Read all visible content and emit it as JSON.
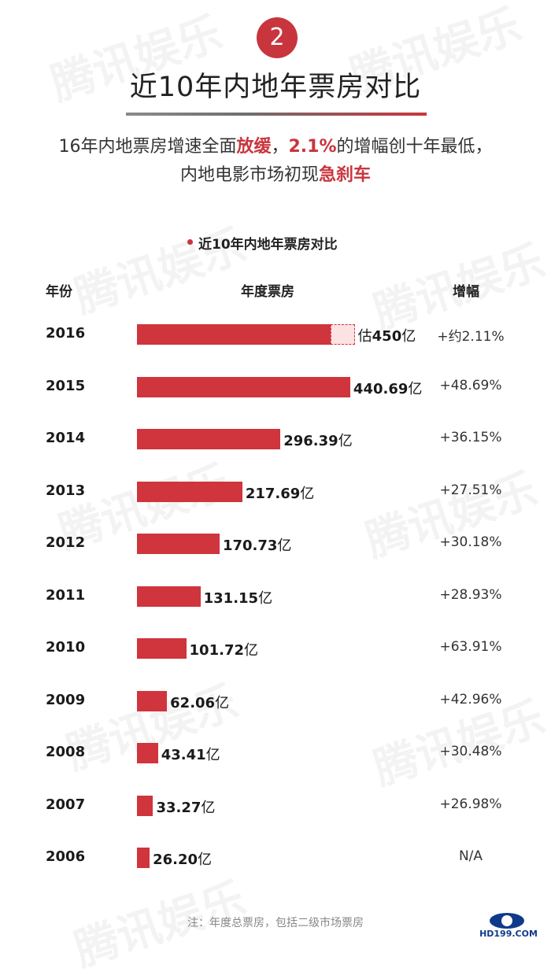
{
  "badge": "2",
  "title": "近10年内地年票房对比",
  "subtitle_line1": {
    "t1": "16年内地票房增速全面",
    "h1": "放缓",
    "t2": "，",
    "h2": "2.1%",
    "t3": "的增幅创十年最低，"
  },
  "subtitle_line2": {
    "t1": "内地电影市场初现",
    "h1": "急刹车"
  },
  "watermark": "腾讯娱乐",
  "footnote": "注：年度总票房，包括二级市场票房",
  "logo_text": "HD199.COM",
  "colors": {
    "bar": "#d0343d",
    "accent": "#c9353d",
    "estimate_fill": "#fde2e3"
  },
  "chart_data": {
    "type": "bar",
    "orientation": "horizontal",
    "title": "近10年内地年票房对比",
    "col_year": "年份",
    "col_box": "年度票房",
    "col_growth": "增幅",
    "rows": [
      {
        "year": "2016",
        "value": 450,
        "prefix": "估",
        "num": "450",
        "unit": "亿",
        "growth": "+约2.11%",
        "estimate": true,
        "estimate_from": 400
      },
      {
        "year": "2015",
        "value": 440.69,
        "prefix": "",
        "num": "440.69",
        "unit": "亿",
        "growth": "+48.69%"
      },
      {
        "year": "2014",
        "value": 296.39,
        "prefix": "",
        "num": "296.39",
        "unit": "亿",
        "growth": "+36.15%"
      },
      {
        "year": "2013",
        "value": 217.69,
        "prefix": "",
        "num": "217.69",
        "unit": "亿",
        "growth": "+27.51%"
      },
      {
        "year": "2012",
        "value": 170.73,
        "prefix": "",
        "num": "170.73",
        "unit": "亿",
        "growth": "+30.18%"
      },
      {
        "year": "2011",
        "value": 131.15,
        "prefix": "",
        "num": "131.15",
        "unit": "亿",
        "growth": "+28.93%"
      },
      {
        "year": "2010",
        "value": 101.72,
        "prefix": "",
        "num": "101.72",
        "unit": "亿",
        "growth": "+63.91%"
      },
      {
        "year": "2009",
        "value": 62.06,
        "prefix": "",
        "num": "62.06",
        "unit": "亿",
        "growth": "+42.96%"
      },
      {
        "year": "2008",
        "value": 43.41,
        "prefix": "",
        "num": "43.41",
        "unit": "亿",
        "growth": "+30.48%"
      },
      {
        "year": "2007",
        "value": 33.27,
        "prefix": "",
        "num": "33.27",
        "unit": "亿",
        "growth": "+26.98%"
      },
      {
        "year": "2006",
        "value": 26.2,
        "prefix": "",
        "num": "26.20",
        "unit": "亿",
        "growth": "N/A"
      }
    ]
  }
}
